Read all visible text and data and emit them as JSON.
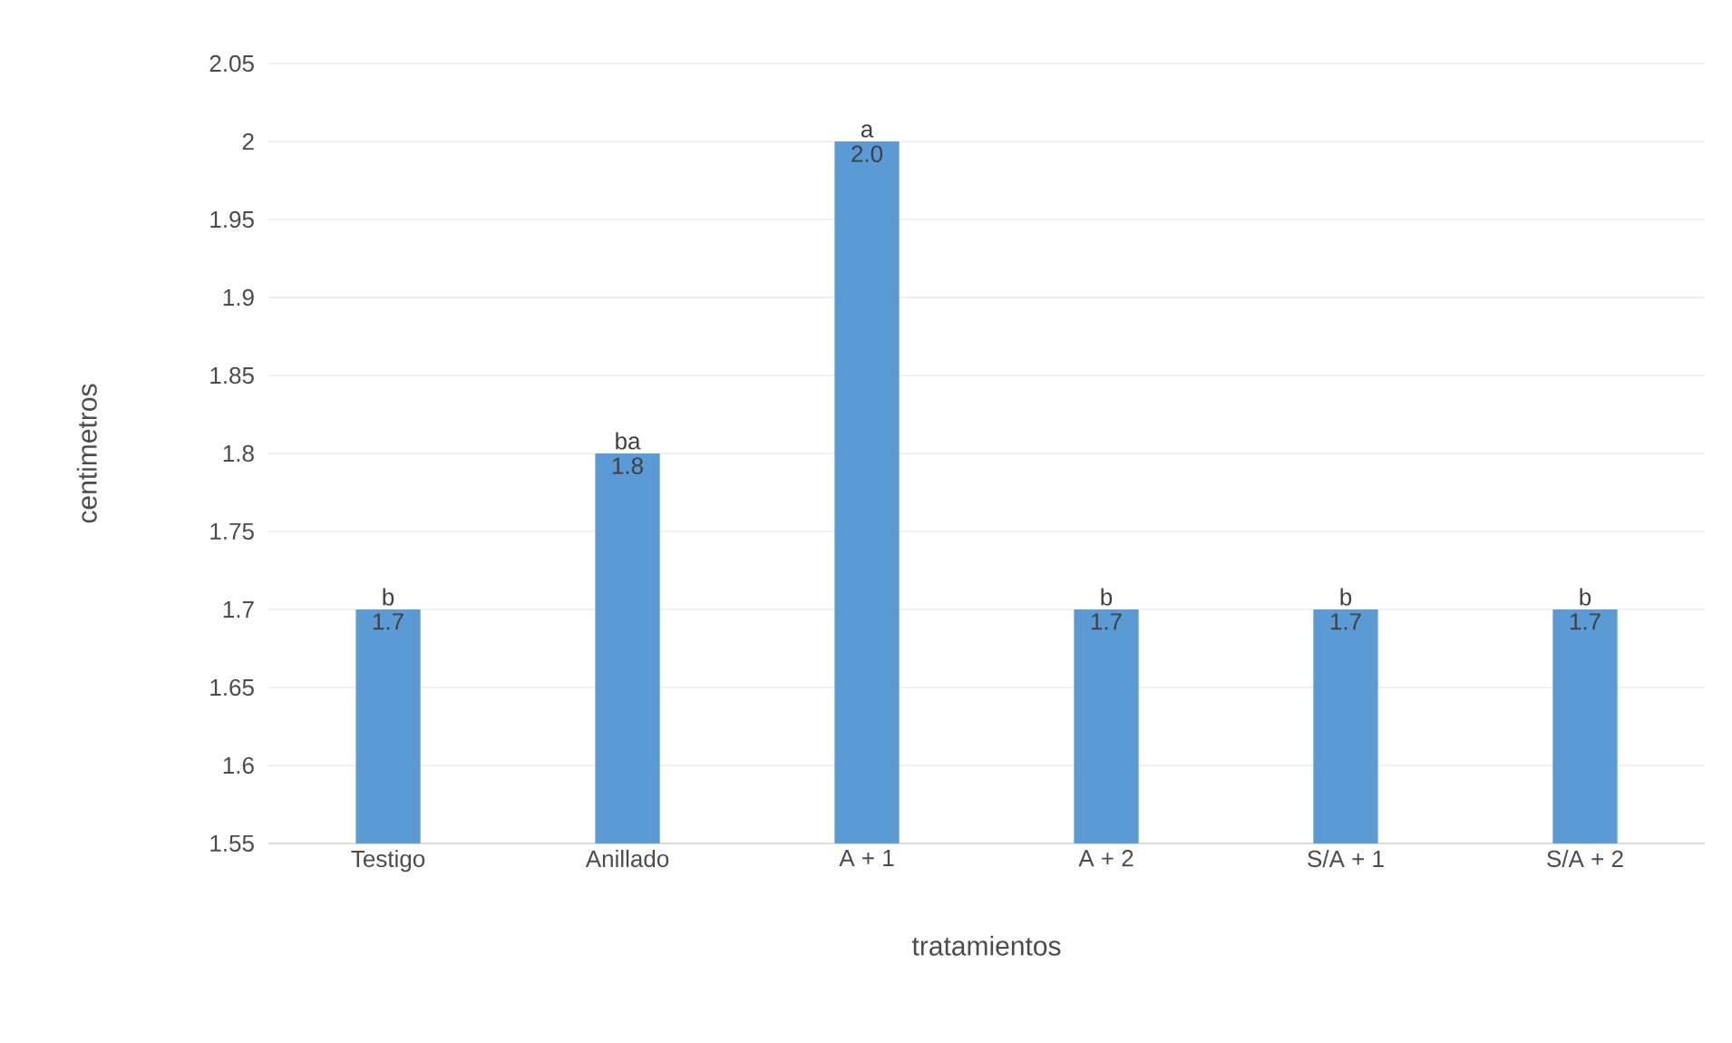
{
  "chart_data": {
    "type": "bar",
    "xlabel": "tratamientos",
    "ylabel": "centimetros",
    "categories": [
      "Testigo",
      "Anillado",
      "A + 1",
      "A + 2",
      "S/A + 1",
      "S/A + 2"
    ],
    "values": [
      1.7,
      1.8,
      2.0,
      1.7,
      1.7,
      1.7
    ],
    "value_labels": [
      "1.7",
      "1.8",
      "2.0",
      "1.7",
      "1.7",
      "1.7"
    ],
    "color": "#5b9bd5",
    "ylim": [
      1.55,
      2.05
    ],
    "yticks": [
      1.55,
      1.6,
      1.65,
      1.7,
      1.75,
      1.8,
      1.85,
      1.9,
      1.95,
      2,
      2.05
    ],
    "grid": "y",
    "annotations": [
      {
        "text": "b",
        "x": "Testigo",
        "y": 1.7
      },
      {
        "text": "ba",
        "x": "Anillado",
        "y": 1.8
      },
      {
        "text": "a",
        "x": "A + 1",
        "y": 2.0
      },
      {
        "text": "b",
        "x": "A + 2",
        "y": 1.7
      },
      {
        "text": "b",
        "x": "S/A + 1",
        "y": 1.7
      },
      {
        "text": "b",
        "x": "S/A + 2",
        "y": 1.7
      }
    ]
  }
}
